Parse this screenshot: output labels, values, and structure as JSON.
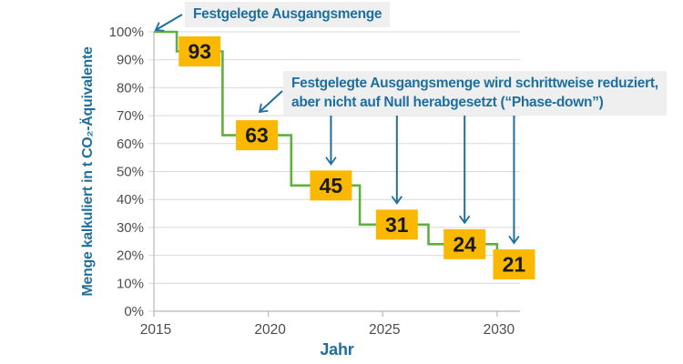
{
  "chart_data": {
    "type": "step-line",
    "title": "",
    "xlabel": "Jahr",
    "ylabel": "Menge kalkuliert in t CO₂-Äquivalente",
    "xlim": [
      2015,
      2031
    ],
    "ylim": [
      0,
      100
    ],
    "grid": true,
    "x_ticks": [
      {
        "value": 2015,
        "label": "2015"
      },
      {
        "value": 2020,
        "label": "2020"
      },
      {
        "value": 2025,
        "label": "2025"
      },
      {
        "value": 2030,
        "label": "2030"
      }
    ],
    "y_ticks": [
      {
        "value": 0,
        "label": "0%"
      },
      {
        "value": 10,
        "label": "10%"
      },
      {
        "value": 20,
        "label": "20%"
      },
      {
        "value": 30,
        "label": "30%"
      },
      {
        "value": 40,
        "label": "40%"
      },
      {
        "value": 50,
        "label": "50%"
      },
      {
        "value": 60,
        "label": "60%"
      },
      {
        "value": 70,
        "label": "70%"
      },
      {
        "value": 80,
        "label": "80%"
      },
      {
        "value": 90,
        "label": "90%"
      },
      {
        "value": 100,
        "label": "100%"
      }
    ],
    "steps": [
      {
        "from_year": 2015,
        "to_year": 2016,
        "percent": 100,
        "label": null
      },
      {
        "from_year": 2016,
        "to_year": 2018,
        "percent": 93,
        "label": "93"
      },
      {
        "from_year": 2018,
        "to_year": 2021,
        "percent": 63,
        "label": "63"
      },
      {
        "from_year": 2021,
        "to_year": 2024,
        "percent": 45,
        "label": "45",
        "label_dx": 6,
        "label_dy": 0,
        "arrow": true
      },
      {
        "from_year": 2024,
        "to_year": 2027,
        "percent": 31,
        "label": "31",
        "label_dx": 3,
        "label_dy": 0,
        "arrow": true
      },
      {
        "from_year": 2027,
        "to_year": 2030,
        "percent": 24,
        "label": "24",
        "label_dx": 2,
        "label_dy": 0,
        "arrow": true
      },
      {
        "from_year": 2030,
        "to_year": 2031,
        "percent": 21,
        "label": "21",
        "label_dx": 6,
        "label_dy": 13,
        "arrow": true
      }
    ],
    "annotations": [
      {
        "id": "start",
        "text": "Festgelegte Ausgangsmenge"
      },
      {
        "id": "phase-down",
        "lines": [
          "Festgelegte Ausgangsmenge wird schrittweise reduziert,",
          "aber nicht auf Null herabgesetzt (“Phase-down”)"
        ]
      }
    ],
    "colors": {
      "accent_text": "#1e6f9e",
      "arrow": "#1e6f9e",
      "step_line": "#5fb13f",
      "value_box_bg": "#fbb800",
      "value_text": "#1a1a1a",
      "grid_line": "#d9d9d9",
      "axis_line": "#c2c2c2",
      "tick_text": "#4d4d4d",
      "annotation_bg": "#efefef"
    }
  }
}
